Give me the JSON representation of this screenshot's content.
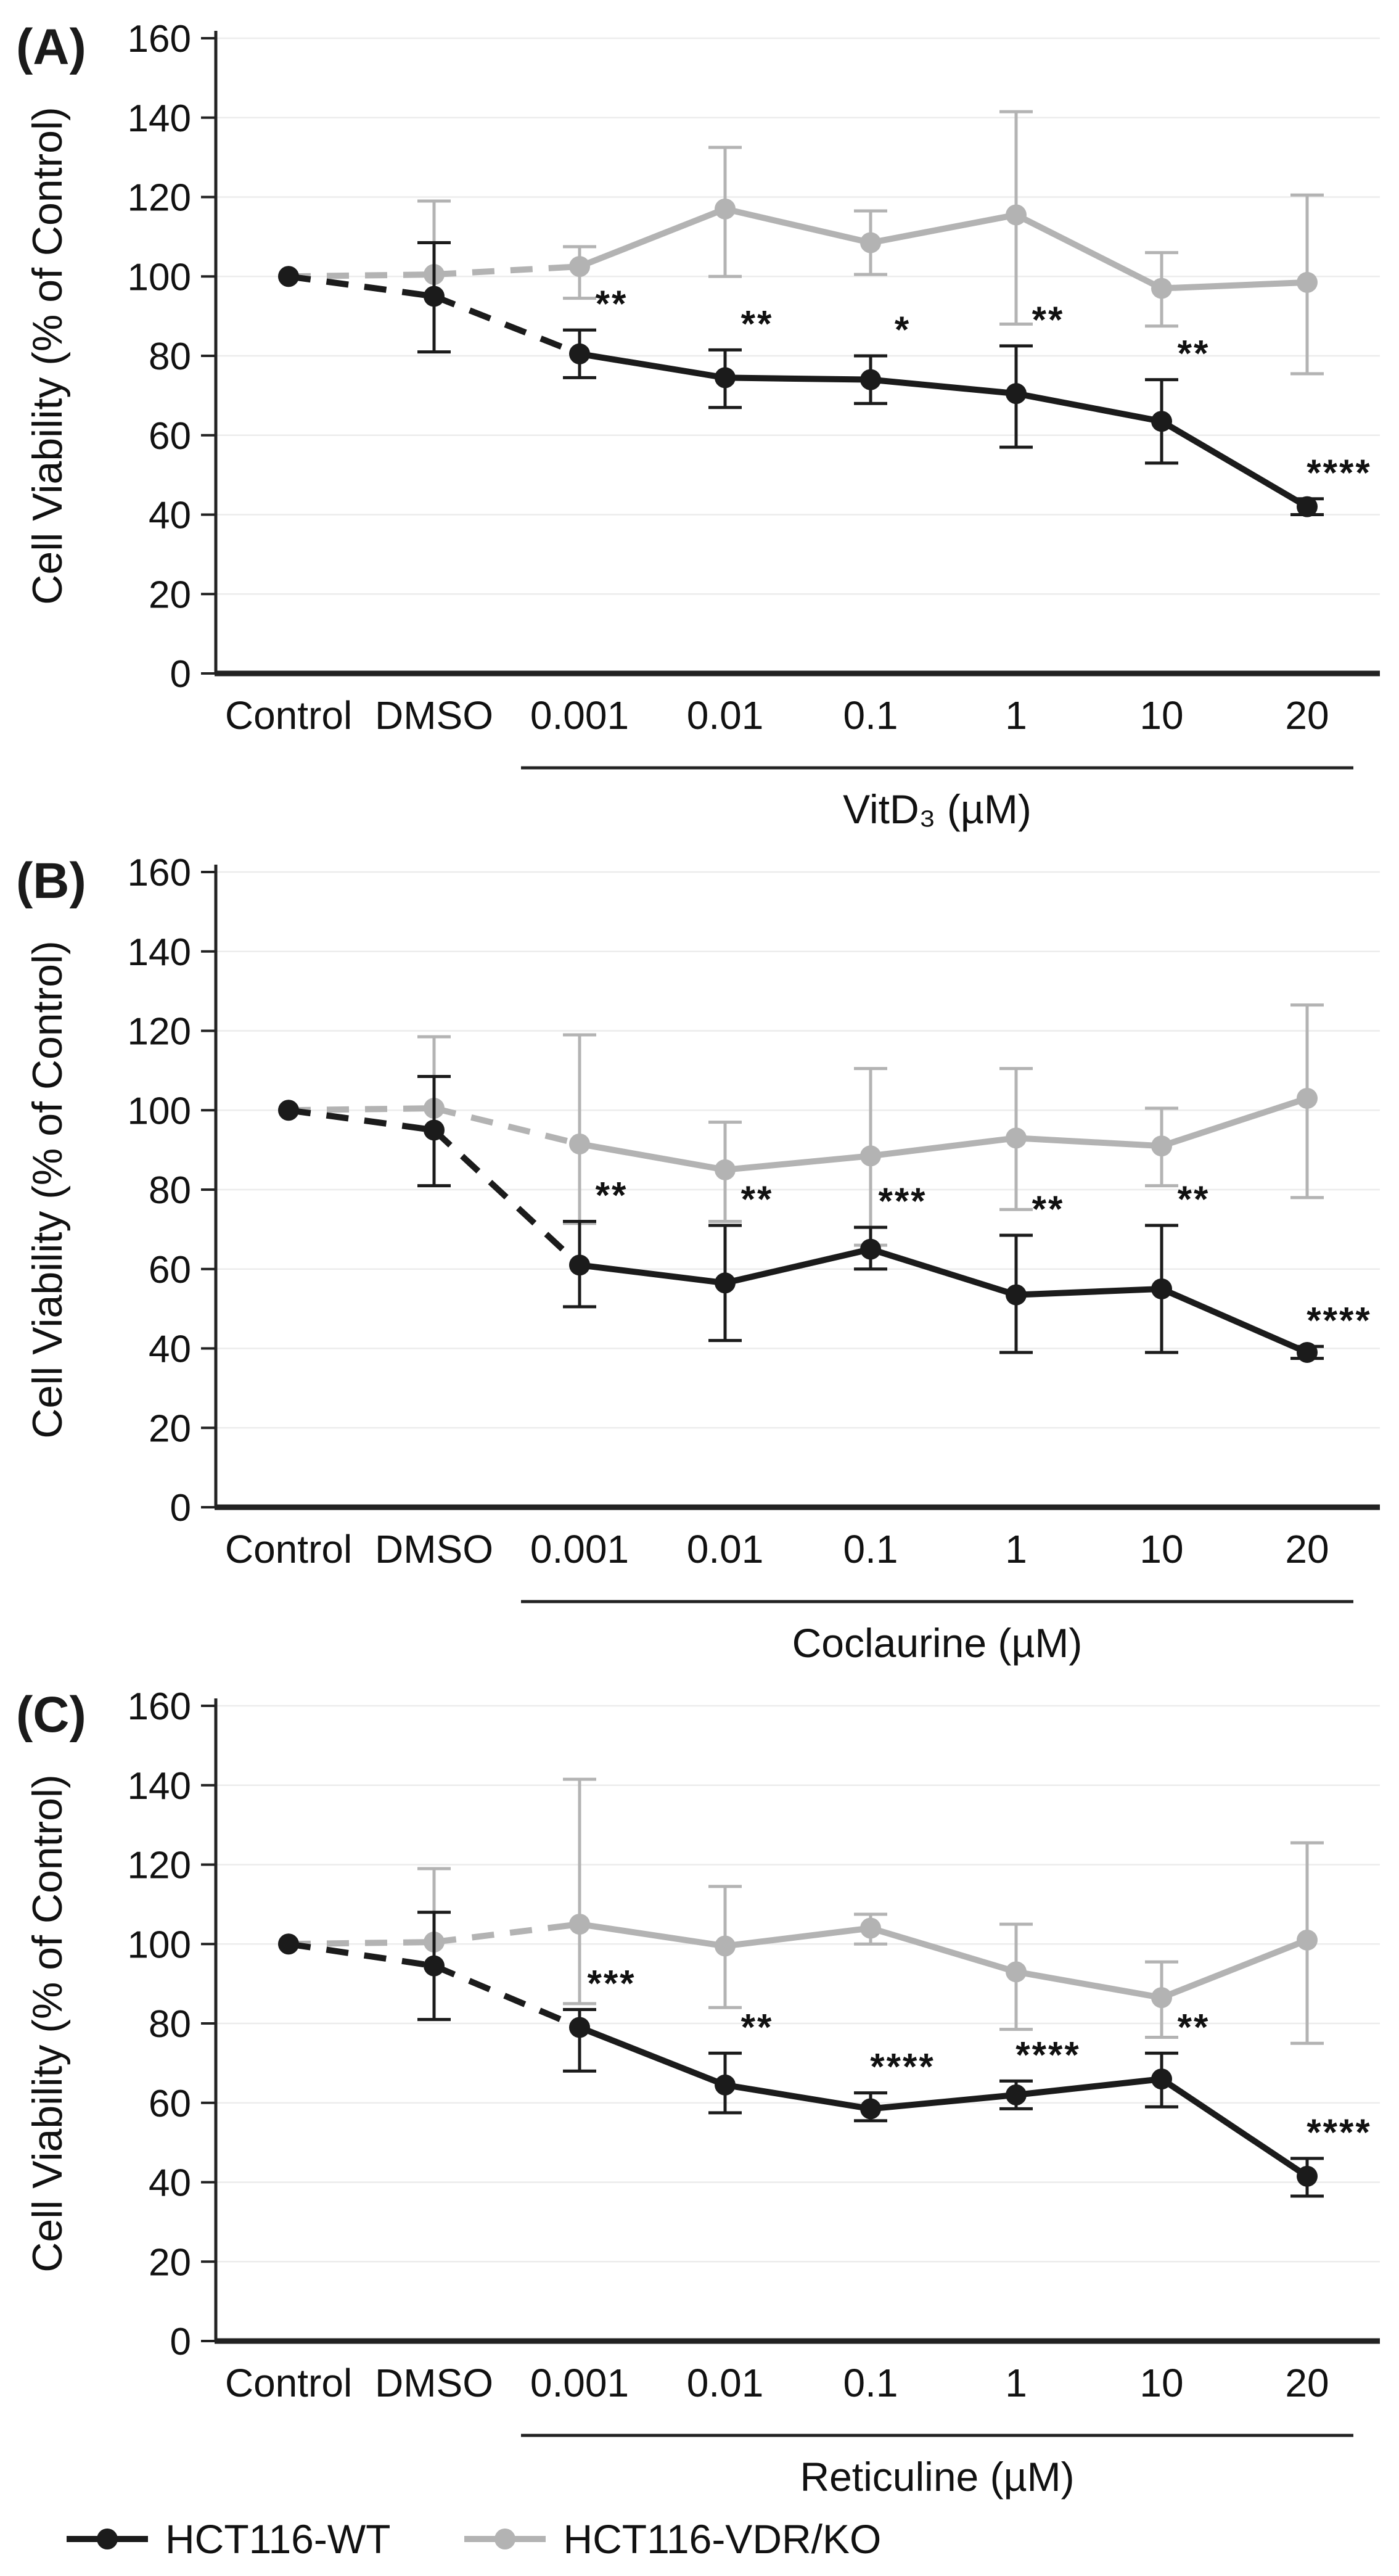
{
  "figure": {
    "background": "#ffffff",
    "axis_color": "#222222",
    "grid_color": "#ececec",
    "ylabel": "Cell Viability (% of Control)"
  },
  "legend": {
    "items": [
      {
        "label": "HCT116-WT",
        "color": "#1b1b1b"
      },
      {
        "label": "HCT116-VDR/KO",
        "color": "#b3b3b3"
      }
    ]
  },
  "chart_data": [
    {
      "type": "line",
      "panel_label": "(A)",
      "ylabel": "Cell Viability (% of Control)",
      "ylim": [
        0,
        160
      ],
      "yticks": [
        0,
        20,
        40,
        60,
        80,
        100,
        120,
        140,
        160
      ],
      "categories": [
        "Control",
        "DMSO",
        "0.001",
        "0.01",
        "0.1",
        "1",
        "10",
        "20"
      ],
      "dose_label": "VitD₃ (µM)",
      "dose_start_index": 2,
      "grid": true,
      "legend_position": "bottom-left",
      "series": [
        {
          "name": "HCT116-WT",
          "color": "#1b1b1b",
          "dashed_segments": [
            0,
            1
          ],
          "values": [
            100,
            95,
            80.5,
            74.5,
            74,
            70.5,
            63.5,
            42
          ],
          "err_minus": [
            0,
            14,
            6,
            7.5,
            6,
            13.5,
            10.5,
            2
          ],
          "err_plus": [
            0,
            13.5,
            6,
            7,
            6,
            12,
            10.5,
            2
          ],
          "significance": [
            "",
            "",
            "**",
            "**",
            "*",
            "**",
            "**",
            "****"
          ]
        },
        {
          "name": "HCT116-VDR/KO",
          "color": "#b3b3b3",
          "dashed_segments": [
            0,
            1
          ],
          "values": [
            100,
            100.5,
            102.5,
            117,
            108.5,
            115.5,
            97,
            98.5
          ],
          "err_minus": [
            0,
            19.5,
            8,
            17,
            8,
            27.5,
            9.5,
            23
          ],
          "err_plus": [
            0,
            18.5,
            5,
            15.5,
            8,
            26,
            9,
            22
          ],
          "significance": null
        }
      ]
    },
    {
      "type": "line",
      "panel_label": "(B)",
      "ylabel": "Cell Viability (% of Control)",
      "ylim": [
        0,
        160
      ],
      "yticks": [
        0,
        20,
        40,
        60,
        80,
        100,
        120,
        140,
        160
      ],
      "categories": [
        "Control",
        "DMSO",
        "0.001",
        "0.01",
        "0.1",
        "1",
        "10",
        "20"
      ],
      "dose_label": "Coclaurine (µM)",
      "dose_start_index": 2,
      "grid": true,
      "legend_position": "bottom-left",
      "series": [
        {
          "name": "HCT116-WT",
          "color": "#1b1b1b",
          "dashed_segments": [
            0,
            1
          ],
          "values": [
            100,
            95,
            61,
            56.5,
            65,
            53.5,
            55,
            39
          ],
          "err_minus": [
            0,
            14,
            10.5,
            14.5,
            5,
            14.5,
            16,
            1.5
          ],
          "err_plus": [
            0,
            13.5,
            11,
            14.5,
            5.5,
            15,
            16,
            1.5
          ],
          "significance": [
            "",
            "",
            "**",
            "**",
            "***",
            "**",
            "**",
            "****"
          ]
        },
        {
          "name": "HCT116-VDR/KO",
          "color": "#b3b3b3",
          "dashed_segments": [
            0,
            1
          ],
          "values": [
            100,
            100.5,
            91.5,
            85,
            88.5,
            93,
            91,
            103
          ],
          "err_minus": [
            0,
            19.5,
            20,
            13,
            22.5,
            18,
            10,
            25
          ],
          "err_plus": [
            0,
            18,
            27.5,
            12,
            22,
            17.5,
            9.5,
            23.5
          ],
          "significance": null
        }
      ]
    },
    {
      "type": "line",
      "panel_label": "(C)",
      "ylabel": "Cell Viability (% of Control)",
      "ylim": [
        0,
        160
      ],
      "yticks": [
        0,
        20,
        40,
        60,
        80,
        100,
        120,
        140,
        160
      ],
      "categories": [
        "Control",
        "DMSO",
        "0.001",
        "0.01",
        "0.1",
        "1",
        "10",
        "20"
      ],
      "dose_label": "Reticuline (µM)",
      "dose_start_index": 2,
      "grid": true,
      "legend_position": "bottom-left",
      "series": [
        {
          "name": "HCT116-WT",
          "color": "#1b1b1b",
          "dashed_segments": [
            0,
            1
          ],
          "values": [
            100,
            94.5,
            79,
            64.5,
            58.5,
            62,
            66,
            41.5
          ],
          "err_minus": [
            0,
            13.5,
            11,
            7,
            3,
            3.5,
            7,
            5
          ],
          "err_plus": [
            0,
            13.5,
            4.5,
            8,
            4,
            3.5,
            6.5,
            4.5
          ],
          "significance": [
            "",
            "",
            "***",
            "**",
            "****",
            "****",
            "**",
            "****"
          ]
        },
        {
          "name": "HCT116-VDR/KO",
          "color": "#b3b3b3",
          "dashed_segments": [
            0,
            1
          ],
          "values": [
            100,
            100.5,
            105,
            99.5,
            104,
            93,
            86.5,
            101
          ],
          "err_minus": [
            0,
            19.5,
            20,
            15.5,
            4,
            14.5,
            10,
            26
          ],
          "err_plus": [
            0,
            18.5,
            36.5,
            15,
            3.5,
            12,
            9,
            24.5
          ],
          "significance": null
        }
      ]
    }
  ]
}
